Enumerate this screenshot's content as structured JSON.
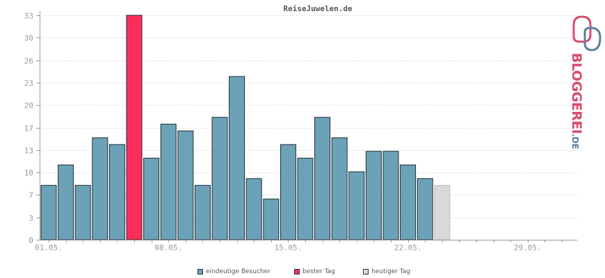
{
  "colors": {
    "visitors": "#6ca2b8",
    "best_day": "#ff2d5a",
    "today": "#d9d9d9",
    "grid": "#c8c8c8",
    "axis": "#999999",
    "logo_pink": "#d94b6c",
    "logo_blue": "#5a7f9a"
  },
  "brand": {
    "logo_text": "BLOGGEREI",
    "logo_suffix": ".DE",
    "icon": "bloggerei-logo-icon"
  },
  "chart_data": {
    "type": "bar",
    "title": "ReiseJuwelen.de",
    "xlabel": "",
    "ylabel": "",
    "ylim": [
      0,
      33
    ],
    "yticks": [
      "0",
      "3",
      "7",
      "10",
      "13",
      "17",
      "20",
      "23",
      "26",
      "30",
      "33"
    ],
    "ytick_values": [
      0,
      3.3,
      6.6,
      9.9,
      13.2,
      16.5,
      19.8,
      23.1,
      26.4,
      29.7,
      33
    ],
    "xticks": [
      "01.05.",
      "08.05.",
      "15.05.",
      "22.05.",
      "29.05."
    ],
    "xtick_days": [
      1,
      8,
      15,
      22,
      29
    ],
    "days_in_range": 31,
    "grid": true,
    "legend_position": "bottom-center",
    "series": [
      {
        "name": "eindeutige Besucher",
        "color": "#6ca2b8",
        "days": [
          1,
          2,
          3,
          4,
          5,
          7,
          8,
          9,
          10,
          11,
          12,
          13,
          14,
          15,
          16,
          17,
          18,
          19,
          20,
          21,
          22,
          23
        ],
        "values": [
          8,
          11,
          8,
          15,
          14,
          12,
          17,
          16,
          8,
          18,
          24,
          9,
          6,
          14,
          12,
          18,
          15,
          10,
          13,
          13,
          11,
          9
        ]
      },
      {
        "name": "bester Tag",
        "color": "#ff2d5a",
        "days": [
          6
        ],
        "values": [
          33
        ]
      },
      {
        "name": "heutiger Tag",
        "color": "#d9d9d9",
        "days": [
          24
        ],
        "values": [
          8
        ]
      }
    ]
  }
}
